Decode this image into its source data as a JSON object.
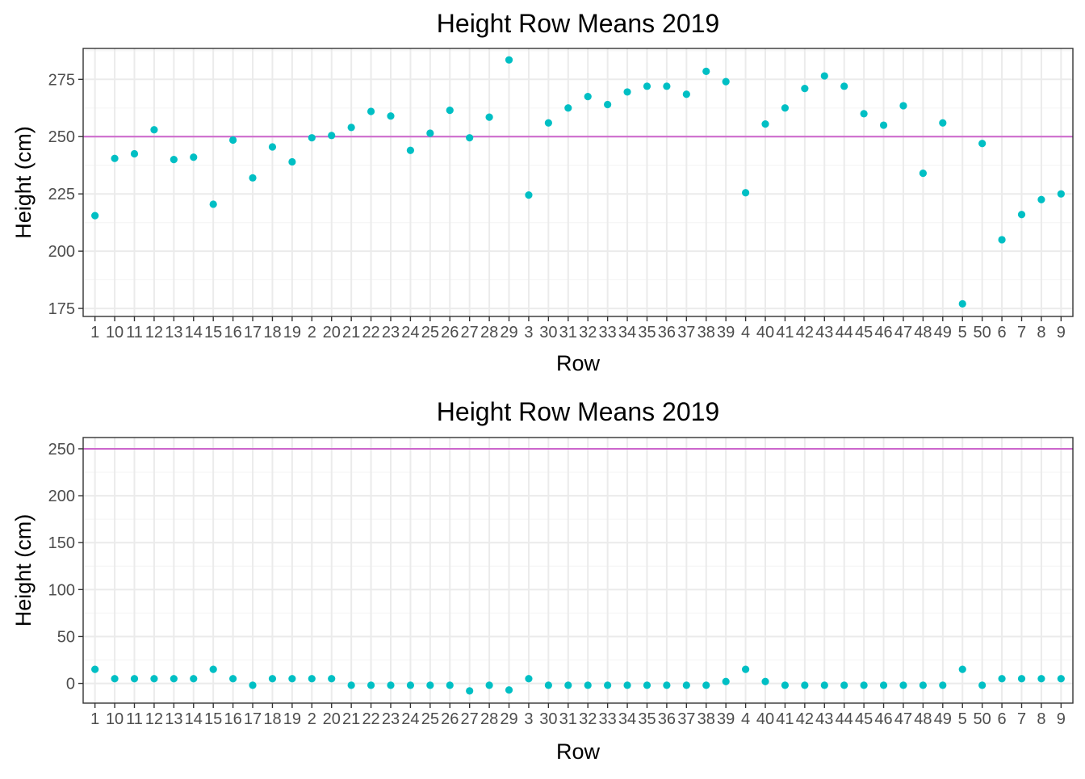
{
  "colors": {
    "point": "#00BFC4",
    "reference_line": "#CC66CC",
    "grid_major": "#EBEBEB",
    "grid_minor": "#F5F5F5",
    "panel_border": "#333333",
    "tick_label": "#4D4D4D"
  },
  "chart_data": [
    {
      "type": "scatter",
      "title": "Height Row Means 2019",
      "xlabel": "Row",
      "ylabel": "Height (cm)",
      "categories": [
        "1",
        "10",
        "11",
        "12",
        "13",
        "14",
        "15",
        "16",
        "17",
        "18",
        "19",
        "2",
        "20",
        "21",
        "22",
        "23",
        "24",
        "25",
        "26",
        "27",
        "28",
        "29",
        "3",
        "30",
        "31",
        "32",
        "33",
        "34",
        "35",
        "36",
        "37",
        "38",
        "39",
        "4",
        "40",
        "41",
        "42",
        "43",
        "44",
        "45",
        "46",
        "47",
        "48",
        "49",
        "5",
        "50",
        "6",
        "7",
        "8",
        "9"
      ],
      "values": [
        215.5,
        240.5,
        242.5,
        253,
        240,
        241,
        220.5,
        248.5,
        232,
        245.5,
        239,
        249.5,
        250.5,
        254,
        261,
        259,
        244,
        251.5,
        261.5,
        249.5,
        258.5,
        283.5,
        224.5,
        256,
        262.5,
        267.5,
        264,
        269.5,
        272,
        272,
        268.5,
        278.5,
        274,
        225.5,
        255.5,
        262.5,
        271,
        276.5,
        272,
        260,
        255,
        263.5,
        234,
        256,
        177,
        247,
        205,
        216,
        222.5,
        225
      ],
      "reference_line": 250,
      "ylim": [
        171.5,
        288.5
      ],
      "yticks": [
        175,
        200,
        225,
        250,
        275
      ],
      "grid": true,
      "legend": "none"
    },
    {
      "type": "scatter",
      "title": "Height Row Means 2019",
      "xlabel": "Row",
      "ylabel": "Height (cm)",
      "categories": [
        "1",
        "10",
        "11",
        "12",
        "13",
        "14",
        "15",
        "16",
        "17",
        "18",
        "19",
        "2",
        "20",
        "21",
        "22",
        "23",
        "24",
        "25",
        "26",
        "27",
        "28",
        "29",
        "3",
        "30",
        "31",
        "32",
        "33",
        "34",
        "35",
        "36",
        "37",
        "38",
        "39",
        "4",
        "40",
        "41",
        "42",
        "43",
        "44",
        "45",
        "46",
        "47",
        "48",
        "49",
        "5",
        "50",
        "6",
        "7",
        "8",
        "9"
      ],
      "values": [
        15,
        5,
        5,
        5,
        5,
        5,
        15,
        5,
        -2,
        5,
        5,
        5,
        5,
        -2,
        -2,
        -2,
        -2,
        -2,
        -2,
        -8,
        -2,
        -7,
        5,
        -2,
        -2,
        -2,
        -2,
        -2,
        -2,
        -2,
        -2,
        -2,
        2,
        15,
        2,
        -2,
        -2,
        -2,
        -2,
        -2,
        -2,
        -2,
        -2,
        -2,
        15,
        -2,
        5,
        5,
        5,
        5
      ],
      "reference_line": 250,
      "ylim": [
        -21,
        262
      ],
      "yticks": [
        0,
        50,
        100,
        150,
        200,
        250
      ],
      "grid": true,
      "legend": "none"
    }
  ]
}
